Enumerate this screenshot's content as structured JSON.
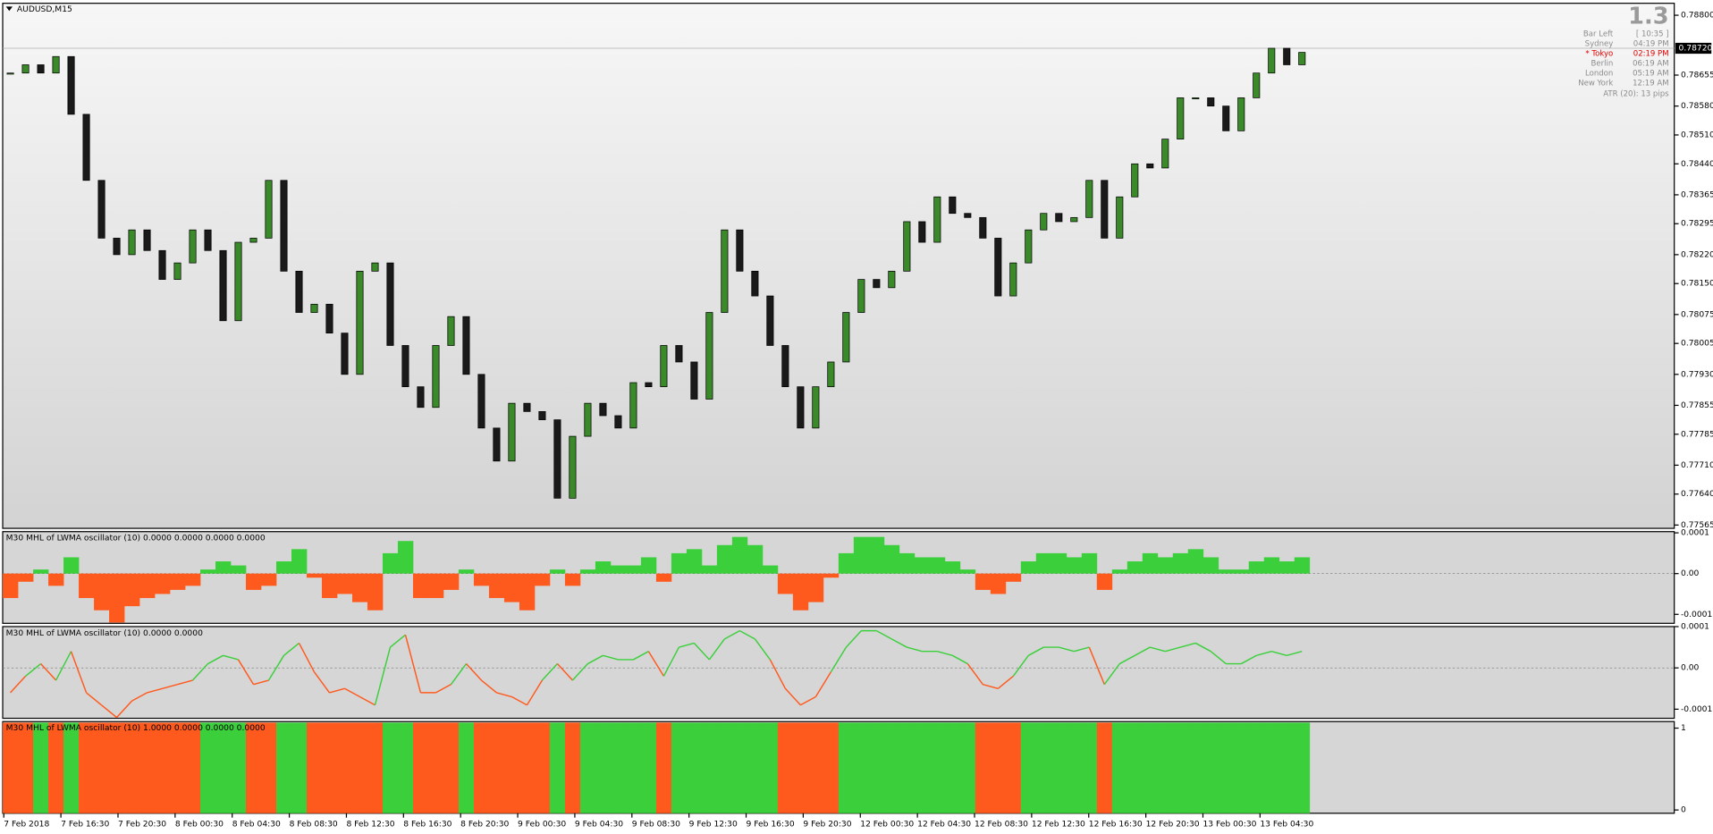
{
  "window": {
    "symbol": "AUDUSD,M15"
  },
  "info": {
    "big": "1.3",
    "rows": [
      {
        "label": "Bar Left",
        "value": "[ 10:35 ]",
        "color": "#8c8c8c"
      },
      {
        "label": "Sydney",
        "value": "04:19 PM",
        "color": "#8c8c8c"
      },
      {
        "label": "* Tokyo",
        "value": "02:19 PM",
        "color": "#e00000"
      },
      {
        "label": "Berlin",
        "value": "06:19 AM",
        "color": "#8c8c8c"
      },
      {
        "label": "London",
        "value": "05:19 AM",
        "color": "#8c8c8c"
      },
      {
        "label": "New York",
        "value": "12:19 AM",
        "color": "#8c8c8c"
      }
    ],
    "atr": "ATR (20): 13 pips"
  },
  "price": {
    "ylim": [
      0.77557,
      0.78829
    ],
    "yticks": [
      {
        "value": 0.788,
        "label": "0.78800"
      },
      {
        "value": 0.78655,
        "label": "0.78655"
      },
      {
        "value": 0.7858,
        "label": "0.78580"
      },
      {
        "value": 0.7851,
        "label": "0.78510"
      },
      {
        "value": 0.7844,
        "label": "0.78440"
      },
      {
        "value": 0.78365,
        "label": "0.78365"
      },
      {
        "value": 0.78295,
        "label": "0.78295"
      },
      {
        "value": 0.7822,
        "label": "0.78220"
      },
      {
        "value": 0.7815,
        "label": "0.78150"
      },
      {
        "value": 0.78075,
        "label": "0.78075"
      },
      {
        "value": 0.78005,
        "label": "0.78005"
      },
      {
        "value": 0.7793,
        "label": "0.77930"
      },
      {
        "value": 0.77855,
        "label": "0.77855"
      },
      {
        "value": 0.77785,
        "label": "0.77785"
      },
      {
        "value": 0.7771,
        "label": "0.77710"
      },
      {
        "value": 0.7764,
        "label": "0.77640"
      },
      {
        "value": 0.77565,
        "label": "0.77565"
      }
    ],
    "current": {
      "value": 0.7872,
      "label": "0.78720"
    },
    "up_color": "#3a8a2a",
    "down_color": "#1a1a1a",
    "close": [
      0.7866,
      0.7868,
      0.7866,
      0.787,
      0.7856,
      0.784,
      0.7826,
      0.7822,
      0.7828,
      0.7823,
      0.7816,
      0.782,
      0.7828,
      0.7823,
      0.7806,
      0.7825,
      0.7826,
      0.784,
      0.7818,
      0.7808,
      0.781,
      0.7803,
      0.7793,
      0.7818,
      0.782,
      0.78,
      0.779,
      0.7785,
      0.78,
      0.7807,
      0.7793,
      0.778,
      0.7772,
      0.7786,
      0.7784,
      0.7782,
      0.7763,
      0.7778,
      0.7786,
      0.7783,
      0.778,
      0.7791,
      0.779,
      0.78,
      0.7796,
      0.7787,
      0.7808,
      0.7828,
      0.7818,
      0.7812,
      0.78,
      0.779,
      0.778,
      0.779,
      0.7796,
      0.7808,
      0.7816,
      0.7814,
      0.7818,
      0.783,
      0.7825,
      0.7836,
      0.7832,
      0.7831,
      0.7826,
      0.7812,
      0.782,
      0.7828,
      0.7832,
      0.783,
      0.7831,
      0.784,
      0.7826,
      0.7836,
      0.7844,
      0.7843,
      0.785,
      0.786,
      0.786,
      0.7858,
      0.7852,
      0.786,
      0.7866,
      0.7872,
      0.7868,
      0.7871
    ]
  },
  "oscillator": {
    "up_color": "#3ccf3c",
    "down_color": "#ff5a1e",
    "values": [
      -6e-05,
      -2e-05,
      1e-05,
      -3e-05,
      4e-05,
      -6e-05,
      -9e-05,
      -0.00012,
      -8e-05,
      -6e-05,
      -5e-05,
      -4e-05,
      -3e-05,
      1e-05,
      3e-05,
      2e-05,
      -4e-05,
      -3e-05,
      3e-05,
      6e-05,
      -1e-05,
      -6e-05,
      -5e-05,
      -7e-05,
      -9e-05,
      5e-05,
      8e-05,
      -6e-05,
      -6e-05,
      -4e-05,
      1e-05,
      -3e-05,
      -6e-05,
      -7e-05,
      -9e-05,
      -3e-05,
      1e-05,
      -3e-05,
      1e-05,
      3e-05,
      2e-05,
      2e-05,
      4e-05,
      -2e-05,
      5e-05,
      6e-05,
      2e-05,
      7e-05,
      9e-05,
      7e-05,
      2e-05,
      -5e-05,
      -9e-05,
      -7e-05,
      -1e-05,
      5e-05,
      9e-05,
      9e-05,
      7e-05,
      5e-05,
      4e-05,
      4e-05,
      3e-05,
      1e-05,
      -4e-05,
      -5e-05,
      -2e-05,
      3e-05,
      5e-05,
      5e-05,
      4e-05,
      5e-05,
      -4e-05,
      1e-05,
      3e-05,
      5e-05,
      4e-05,
      5e-05,
      6e-05,
      4e-05,
      1e-05,
      1e-05,
      3e-05,
      4e-05,
      3e-05,
      4e-05
    ],
    "panels": [
      {
        "title": "M30 MHL of LWMA oscillator (10) 0.0000 0.0000 0.0000 0.0000",
        "style": "histogram",
        "ylim": [
          -0.000122,
          0.000103
        ],
        "yticks": [
          0.0001,
          {
            "value": 0,
            "label": "0.00"
          },
          -0.0001
        ]
      },
      {
        "title": "M30 MHL of LWMA oscillator (10) 0.0000 0.0000",
        "style": "line",
        "ylim": [
          -0.000122,
          0.0001
        ],
        "yticks": [
          0.0001,
          {
            "value": 0,
            "label": "0.00"
          },
          -0.0001
        ]
      },
      {
        "title": "M30 MHL of LWMA oscillator (10) 1.0000 0.0000 0.0000 0.0000",
        "style": "state",
        "ylim": [
          -0.04,
          1.08
        ],
        "yticks": [
          1,
          0
        ]
      }
    ]
  },
  "time_labels": [
    "7 Feb 2018",
    "7 Feb 16:30",
    "7 Feb 20:30",
    "8 Feb 00:30",
    "8 Feb 04:30",
    "8 Feb 08:30",
    "8 Feb 12:30",
    "8 Feb 16:30",
    "8 Feb 20:30",
    "9 Feb 00:30",
    "9 Feb 04:30",
    "9 Feb 08:30",
    "9 Feb 12:30",
    "9 Feb 16:30",
    "9 Feb 20:30",
    "12 Feb 00:30",
    "12 Feb 04:30",
    "12 Feb 08:30",
    "12 Feb 12:30",
    "12 Feb 16:30",
    "12 Feb 20:30",
    "13 Feb 00:30",
    "13 Feb 04:30"
  ]
}
